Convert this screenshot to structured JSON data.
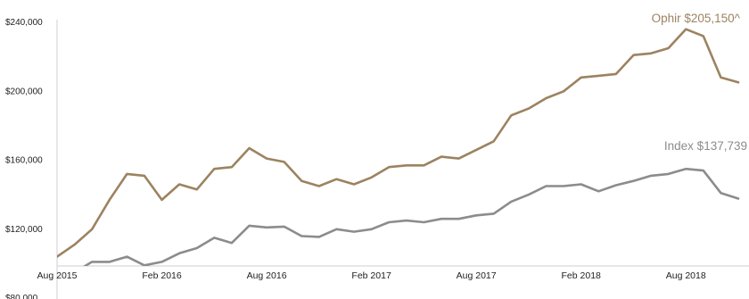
{
  "chart_data": {
    "type": "line",
    "title": "",
    "xlabel": "",
    "ylabel": "",
    "ylim": [
      80000,
      240000
    ],
    "y_ticks": [
      "$240,000",
      "$200,000",
      "$160,000",
      "$120,000",
      "$80,000"
    ],
    "y_tick_values": [
      240000,
      200000,
      160000,
      120000,
      80000
    ],
    "x_ticks": [
      "Aug 2015",
      "Feb 2016",
      "Aug 2016",
      "Feb 2017",
      "Aug 2017",
      "Feb 2018",
      "Aug 2018"
    ],
    "x_tick_index": [
      0,
      6,
      12,
      18,
      24,
      30,
      36
    ],
    "grid": false,
    "legend": "none",
    "series": [
      {
        "name": "Ophir",
        "color": "#9c8360",
        "end_label": "Ophir $205,150^",
        "values": [
          104000,
          111000,
          120000,
          137000,
          152000,
          151000,
          137000,
          146000,
          143000,
          155000,
          156000,
          167000,
          161000,
          159000,
          148000,
          145000,
          149000,
          146000,
          150000,
          156000,
          157000,
          157000,
          162000,
          161000,
          166000,
          171000,
          186000,
          190000,
          196000,
          200000,
          208000,
          209000,
          210000,
          221000,
          222000,
          225000,
          236000,
          232000,
          208000,
          205150
        ]
      },
      {
        "name": "Index",
        "color": "#8c8c8c",
        "end_label": "Index $137,739",
        "values": [
          97000,
          95000,
          101000,
          101000,
          104000,
          99000,
          101000,
          106000,
          109000,
          115000,
          112000,
          122000,
          121000,
          121500,
          116000,
          115500,
          120000,
          118500,
          120000,
          124000,
          125000,
          124000,
          126000,
          126000,
          128000,
          129000,
          136000,
          140000,
          145000,
          145000,
          146000,
          142000,
          145500,
          148000,
          151000,
          152000,
          155000,
          154000,
          141000,
          137739
        ]
      }
    ]
  }
}
